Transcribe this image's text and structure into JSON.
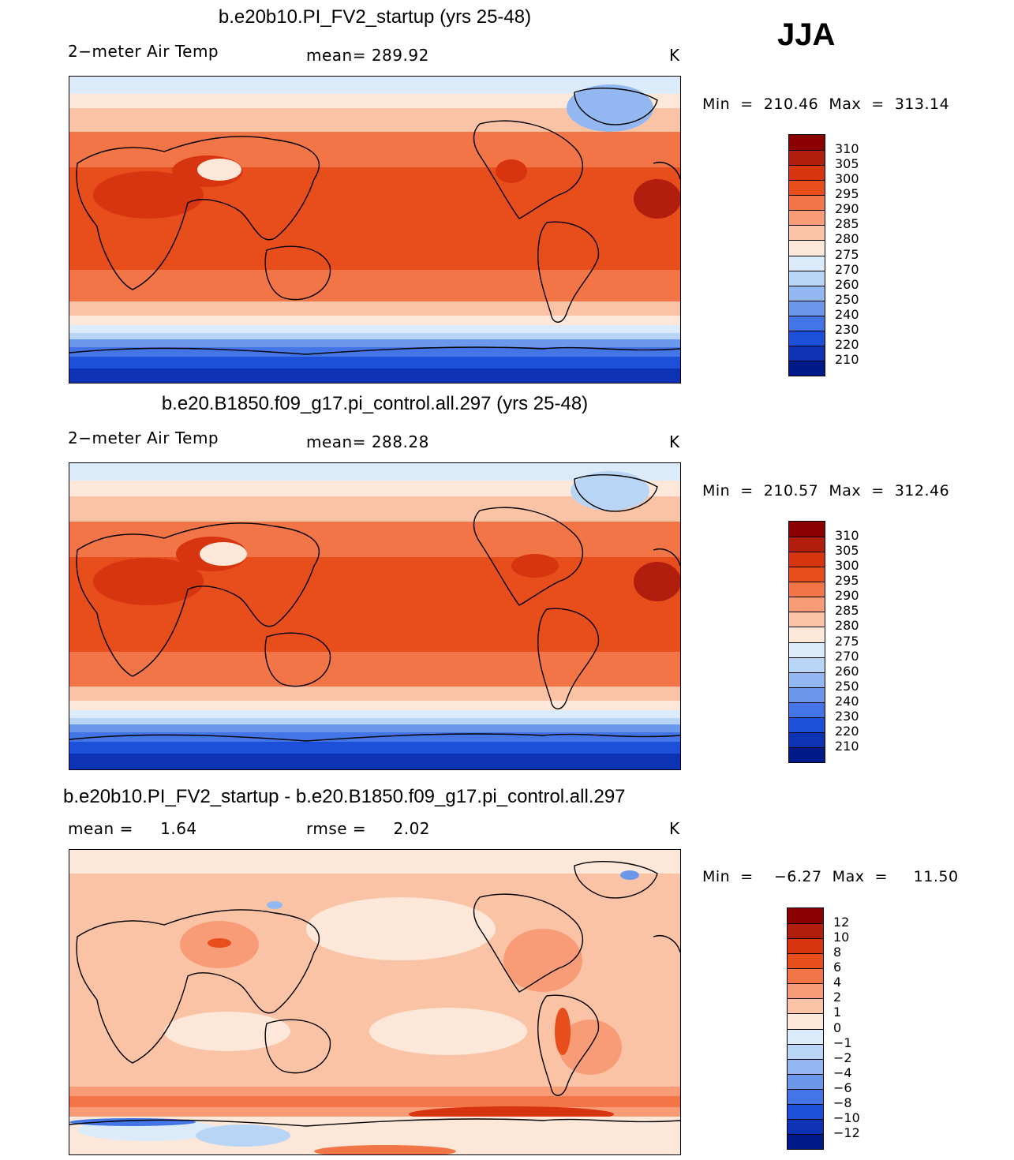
{
  "season": "JJA",
  "panels": [
    {
      "title": "b.e20b10.PI_FV2_startup (yrs 25-48)",
      "left_label": "2−meter Air Temp",
      "center_label": "mean=  289.92",
      "unit": "K",
      "minmax": "Min  =  210.46  Max  =  313.14",
      "colorbar_labels": [
        "310",
        "305",
        "300",
        "295",
        "290",
        "285",
        "280",
        "275",
        "270",
        "260",
        "250",
        "240",
        "230",
        "220",
        "210"
      ],
      "colorbar_colors": [
        "#8b0000",
        "#b21e0e",
        "#d73410",
        "#e84d1c",
        "#f27547",
        "#f79c77",
        "#fac3a6",
        "#fde7d8",
        "#dcebfa",
        "#b9d5f6",
        "#93b8f1",
        "#6c98ec",
        "#4375e6",
        "#1d50d8",
        "#0d32b3",
        "#001a8a"
      ]
    },
    {
      "title": "b.e20.B1850.f09_g17.pi_control.all.297 (yrs 25-48)",
      "left_label": "2−meter Air Temp",
      "center_label": "mean=  288.28",
      "unit": "K",
      "minmax": "Min  =  210.57  Max  =  312.46",
      "colorbar_labels": [
        "310",
        "305",
        "300",
        "295",
        "290",
        "285",
        "280",
        "275",
        "270",
        "260",
        "250",
        "240",
        "230",
        "220",
        "210"
      ],
      "colorbar_colors": [
        "#8b0000",
        "#b21e0e",
        "#d73410",
        "#e84d1c",
        "#f27547",
        "#f79c77",
        "#fac3a6",
        "#fde7d8",
        "#dcebfa",
        "#b9d5f6",
        "#93b8f1",
        "#6c98ec",
        "#4375e6",
        "#1d50d8",
        "#0d32b3",
        "#001a8a"
      ]
    },
    {
      "title": "b.e20b10.PI_FV2_startup - b.e20.B1850.f09_g17.pi_control.all.297",
      "left_label": "mean =     1.64",
      "center_label": "rmse =     2.02",
      "unit": "K",
      "minmax": "Min  =    −6.27  Max  =     11.50",
      "colorbar_labels": [
        "12",
        "10",
        "8",
        "6",
        "4",
        "2",
        "1",
        "0",
        "−1",
        "−2",
        "−4",
        "−6",
        "−8",
        "−10",
        "−12"
      ],
      "colorbar_colors": [
        "#8b0000",
        "#b21e0e",
        "#d73410",
        "#e84d1c",
        "#f27547",
        "#f79c77",
        "#fac3a6",
        "#fde7d8",
        "#dcebfa",
        "#b9d5f6",
        "#93b8f1",
        "#6c98ec",
        "#4375e6",
        "#1d50d8",
        "#0d32b3",
        "#001a8a"
      ]
    }
  ]
}
